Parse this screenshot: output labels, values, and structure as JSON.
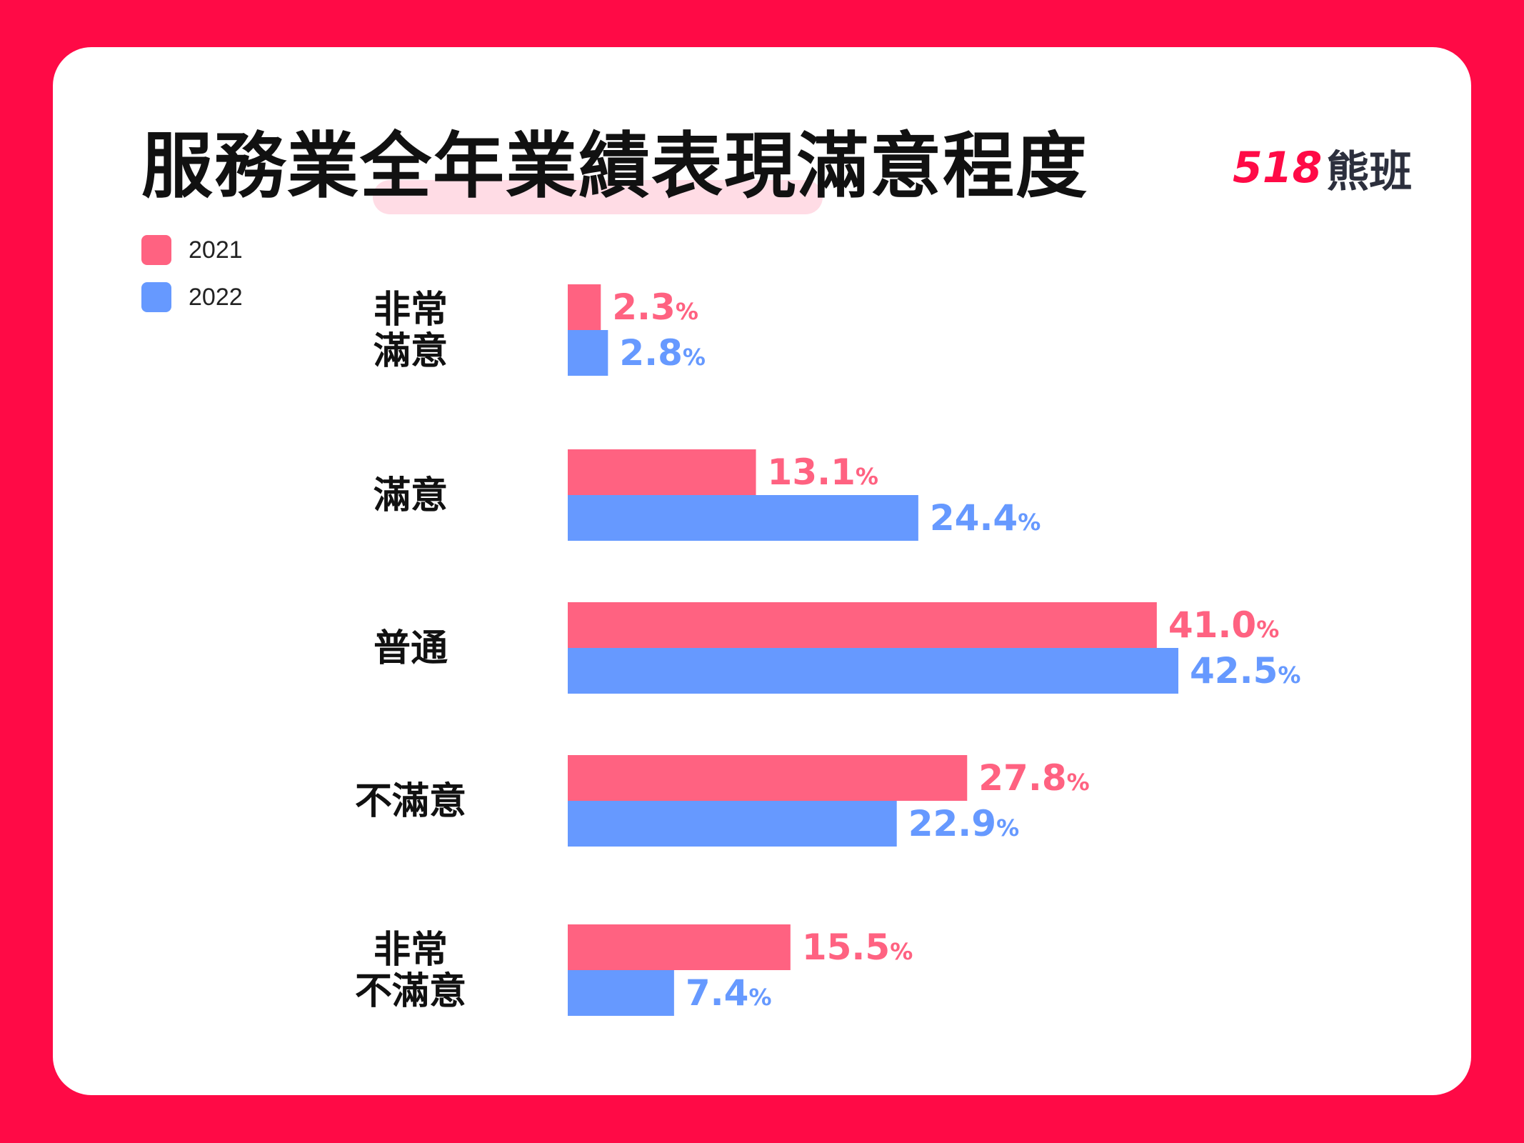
{
  "title": "服務業全年業績表現滿意程度",
  "logo": {
    "number": "518",
    "name": "熊班"
  },
  "colors": {
    "background": "#ff0a46",
    "series_2021": "#ff6281",
    "series_2022": "#6699ff"
  },
  "legend": [
    {
      "label": "2021",
      "color": "#ff6281"
    },
    {
      "label": "2022",
      "color": "#6699ff"
    }
  ],
  "chart_data": {
    "type": "bar",
    "orientation": "horizontal",
    "title": "服務業全年業績表現滿意程度",
    "categories": [
      [
        "非常",
        "滿意"
      ],
      [
        "滿意"
      ],
      [
        "普通"
      ],
      [
        "不滿意"
      ],
      [
        "非常",
        "不滿意"
      ]
    ],
    "series": [
      {
        "name": "2021",
        "color": "#ff6281",
        "values": [
          2.3,
          13.1,
          41.0,
          27.8,
          15.5
        ]
      },
      {
        "name": "2022",
        "color": "#6699ff",
        "values": [
          2.8,
          24.4,
          42.5,
          22.9,
          7.4
        ]
      }
    ],
    "value_suffix": "%",
    "xlim": [
      0,
      42.5
    ],
    "grid": false,
    "legend_position": "top-left"
  }
}
